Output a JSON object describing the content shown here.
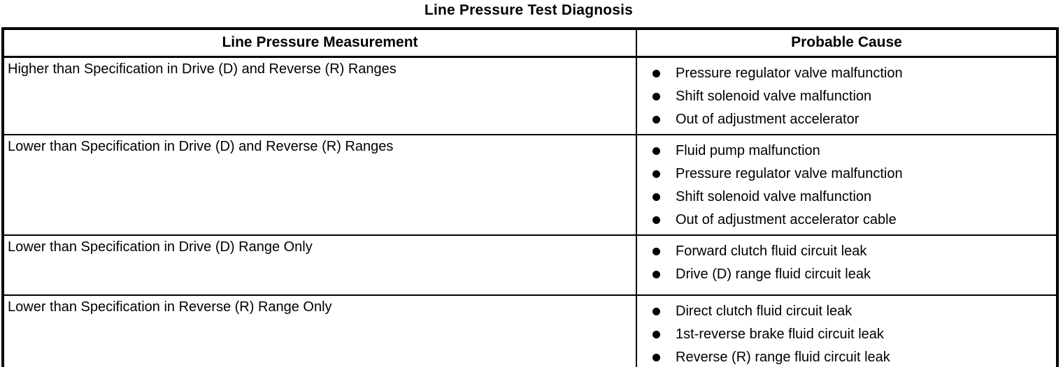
{
  "title": "Line Pressure Test Diagnosis",
  "colors": {
    "text": "#000000",
    "background": "#ffffff",
    "border": "#000000"
  },
  "table": {
    "headers": [
      "Line Pressure Measurement",
      "Probable Cause"
    ],
    "rows": [
      {
        "measurement": "Higher than Specification in Drive (D) and Reverse (R) Ranges",
        "causes": [
          "Pressure regulator valve malfunction",
          "Shift solenoid valve malfunction",
          "Out of adjustment accelerator"
        ]
      },
      {
        "measurement": "Lower than Specification in Drive (D) and Reverse (R) Ranges",
        "causes": [
          "Fluid pump malfunction",
          "Pressure regulator valve malfunction",
          "Shift solenoid valve malfunction",
          "Out of adjustment accelerator cable"
        ]
      },
      {
        "measurement": "Lower than Specification in Drive (D) Range Only",
        "causes": [
          "Forward clutch fluid circuit leak",
          "Drive (D) range fluid circuit leak"
        ]
      },
      {
        "measurement": "Lower than Specification in Reverse (R) Range Only",
        "causes": [
          "Direct clutch fluid circuit leak",
          "1st-reverse brake fluid circuit leak",
          "Reverse (R) range fluid circuit leak"
        ]
      }
    ]
  }
}
